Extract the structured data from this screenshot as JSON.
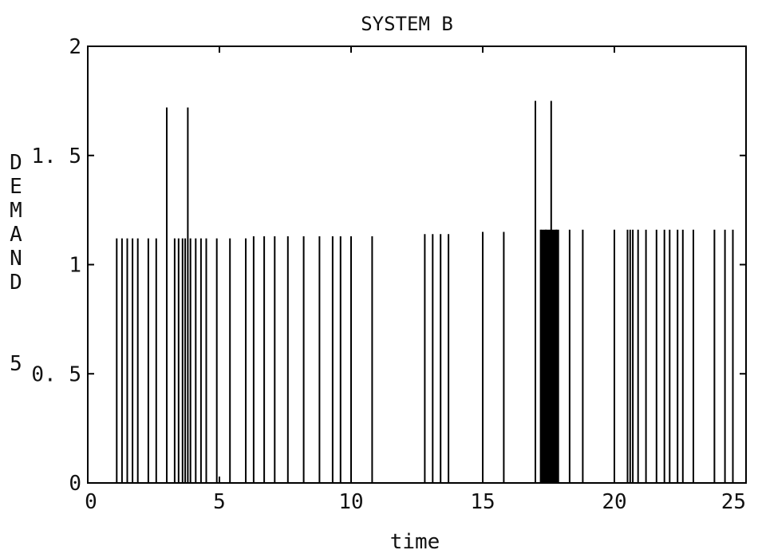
{
  "chart_data": {
    "type": "bar",
    "title": "SYSTEM B",
    "xlabel": "time",
    "ylabel": "DEMAND",
    "ylabel_suffix": "5",
    "xlim": [
      0,
      25
    ],
    "ylim": [
      0,
      2
    ],
    "xticks": [
      0,
      5,
      10,
      15,
      20,
      25
    ],
    "xtick_labels": [
      "0",
      "5",
      "10",
      "15",
      "20",
      "25"
    ],
    "yticks": [
      0,
      0.5,
      1,
      1.5,
      2
    ],
    "ytick_labels": [
      "0",
      "0. 5",
      "1",
      "1. 5",
      "2"
    ],
    "grid": false,
    "color": "#000000",
    "series": [
      {
        "x": [
          1.1,
          1.3,
          1.5,
          1.7,
          1.9,
          2.3,
          2.6,
          3.0,
          3.3,
          3.45,
          3.6,
          3.7,
          3.8,
          3.9,
          4.1,
          4.3,
          4.5,
          4.9,
          5.4,
          6.0,
          6.3,
          6.7,
          7.1,
          7.6,
          8.2,
          8.8,
          9.3,
          9.6,
          10.0,
          10.8,
          12.8,
          13.1,
          13.4,
          13.7,
          15.0,
          15.8,
          17.0,
          17.2,
          17.4,
          17.6,
          17.8,
          18.3,
          18.8,
          20.0,
          20.5,
          20.6,
          20.7,
          20.9,
          21.2,
          21.6,
          21.9,
          22.1,
          22.4,
          22.6,
          23.0,
          23.8,
          24.2,
          24.5
        ],
        "values": [
          1.12,
          1.12,
          1.12,
          1.12,
          1.12,
          1.12,
          1.12,
          1.72,
          1.12,
          1.12,
          1.12,
          1.12,
          1.72,
          1.12,
          1.12,
          1.12,
          1.12,
          1.12,
          1.12,
          1.12,
          1.13,
          1.13,
          1.13,
          1.13,
          1.13,
          1.13,
          1.13,
          1.13,
          1.13,
          1.13,
          1.14,
          1.14,
          1.14,
          1.14,
          1.15,
          1.15,
          1.75,
          1.16,
          1.16,
          1.75,
          1.16,
          1.16,
          1.16,
          1.16,
          1.16,
          1.16,
          1.16,
          1.16,
          1.16,
          1.16,
          1.16,
          1.16,
          1.16,
          1.16,
          1.16,
          1.16,
          1.16,
          1.16
        ]
      }
    ],
    "filled_block": {
      "x_start": 17.2,
      "x_end": 17.9,
      "value": 1.16
    }
  }
}
